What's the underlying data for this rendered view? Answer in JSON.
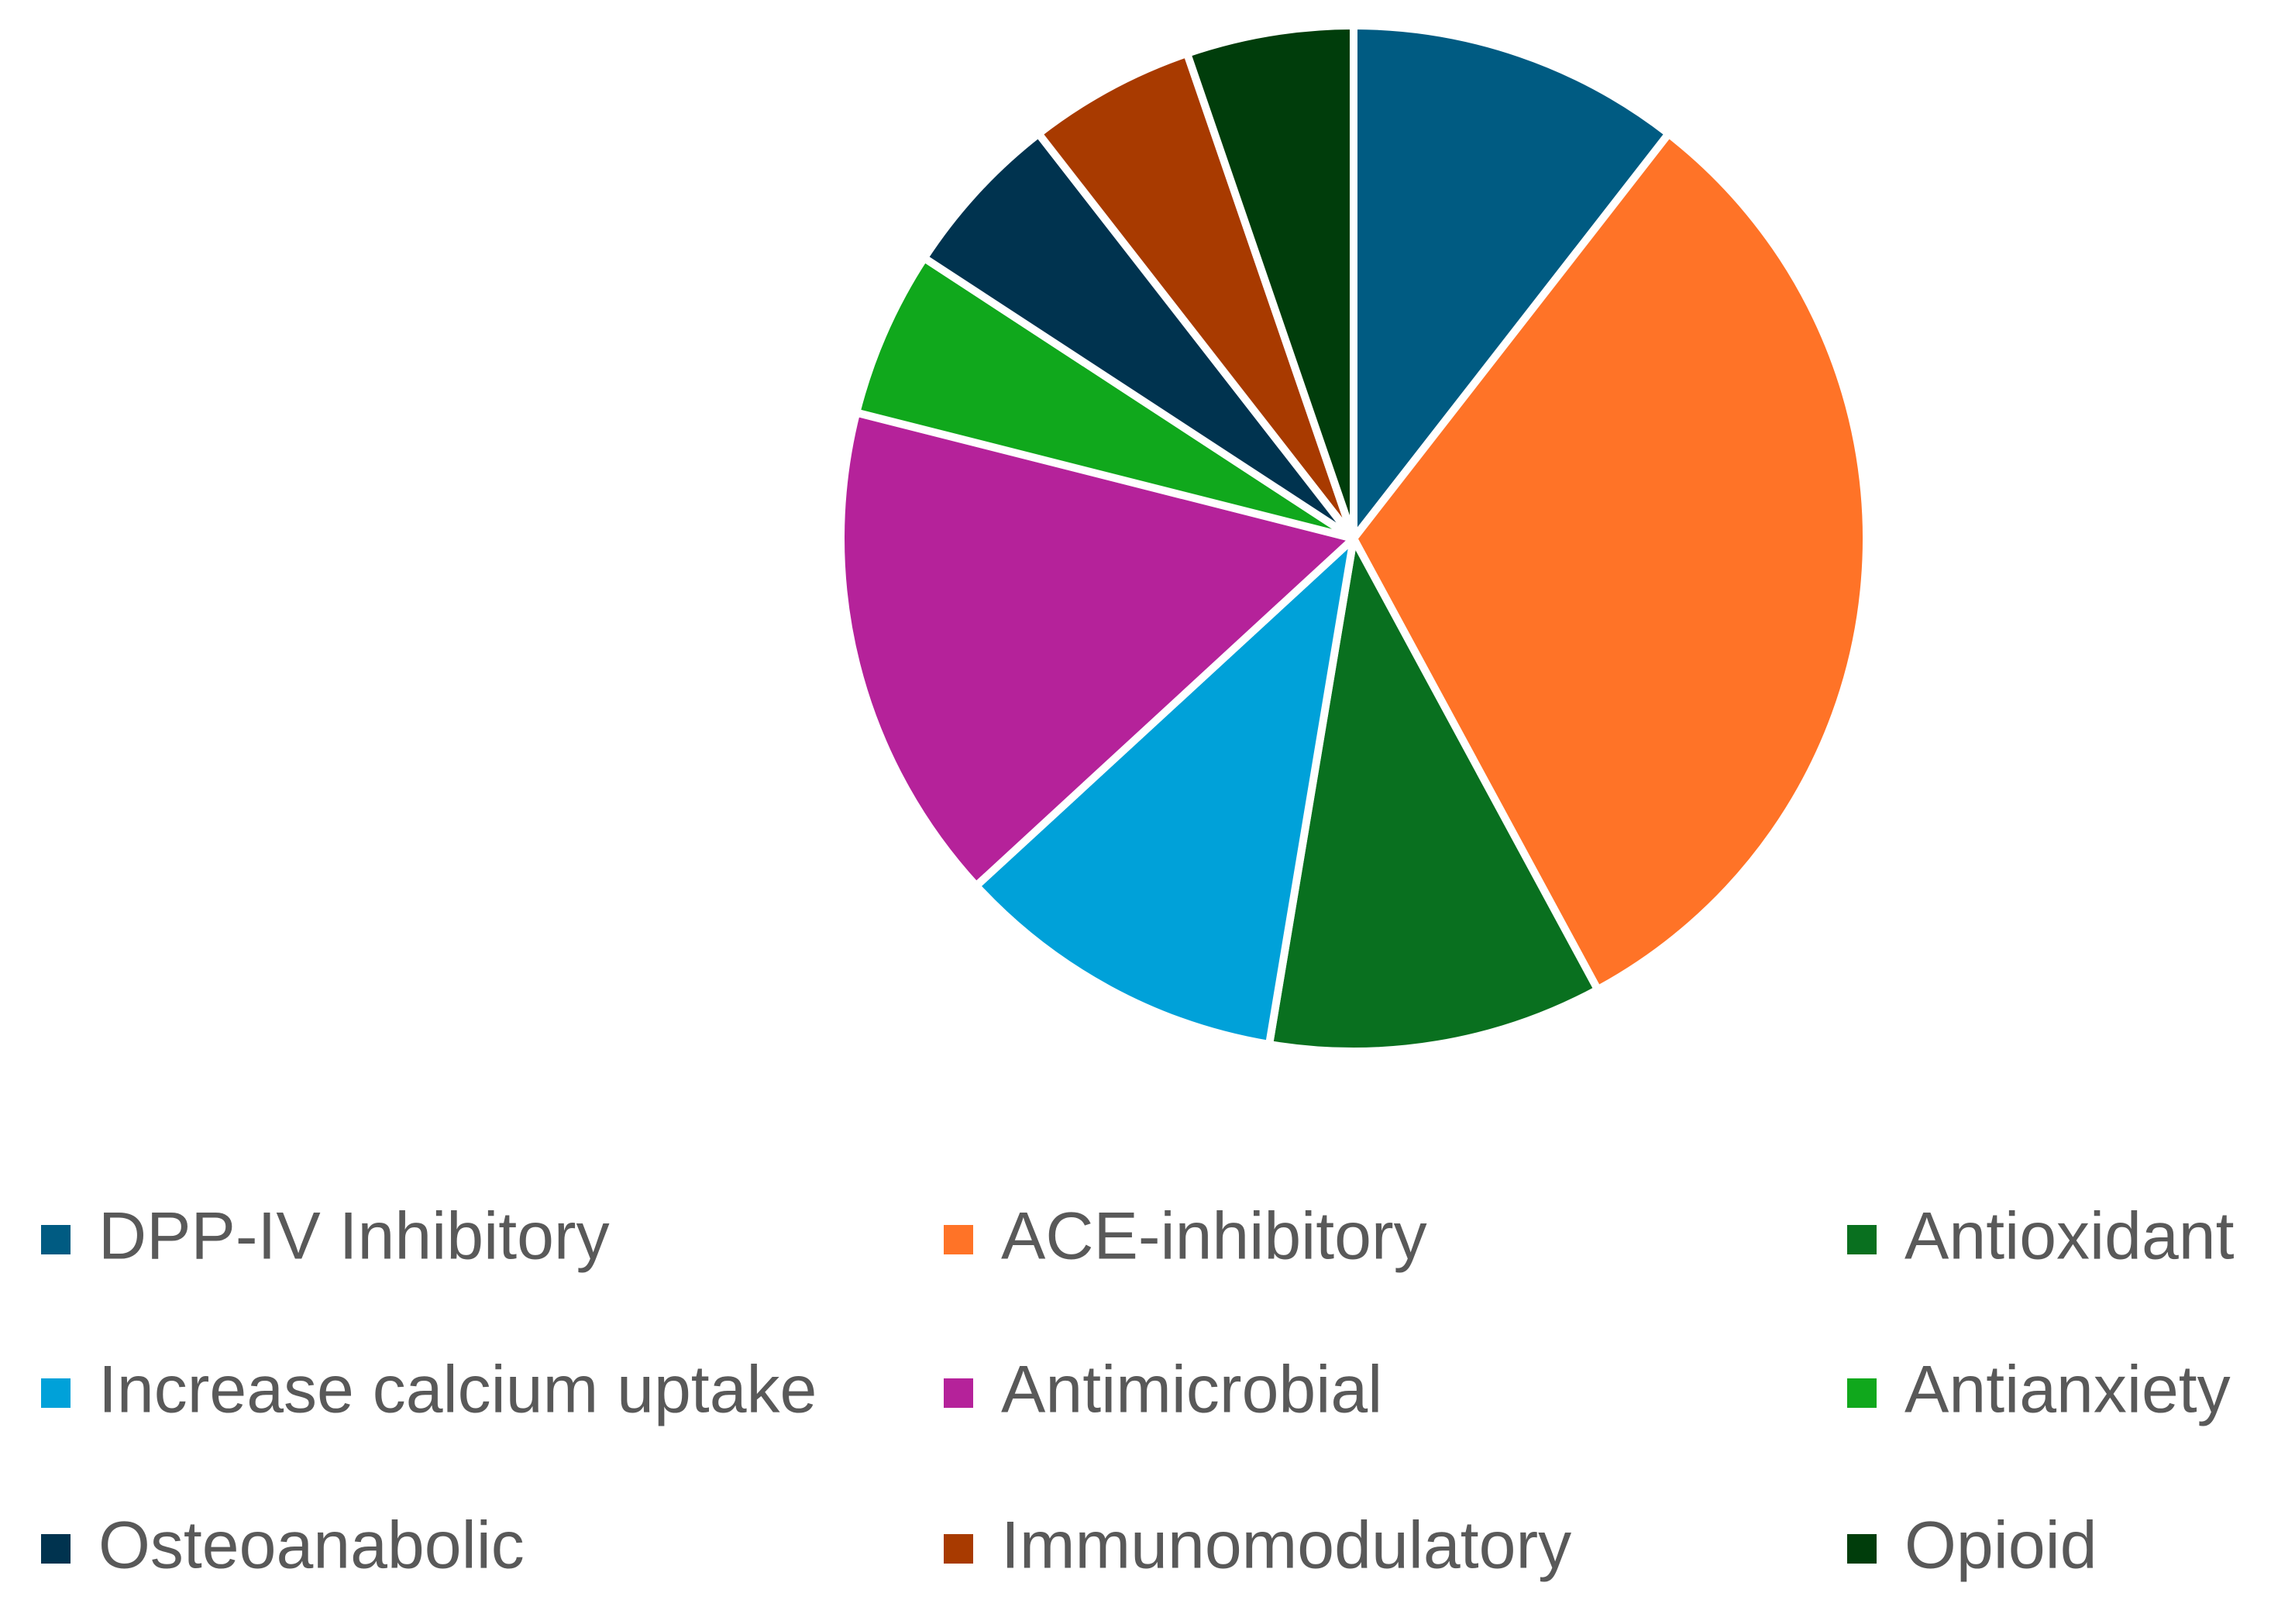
{
  "chart_data": {
    "type": "pie",
    "categories": [
      "DPP-IV Inhibitory",
      "ACE-inhibitory",
      "Antioxidant",
      "Increase calcium uptake",
      "Antimicrobial",
      "Antianxiety",
      "Osteoanabolic",
      "Immunomodulatory",
      "Opioid"
    ],
    "values": [
      2,
      6,
      2,
      2,
      3,
      1,
      1,
      1,
      1
    ],
    "colors": [
      "#005b82",
      "#ff7327",
      "#09701f",
      "#00a1d9",
      "#b5229a",
      "#10a81c",
      "#00334f",
      "#a83a00",
      "#003d0b"
    ],
    "legend": "bottom"
  }
}
